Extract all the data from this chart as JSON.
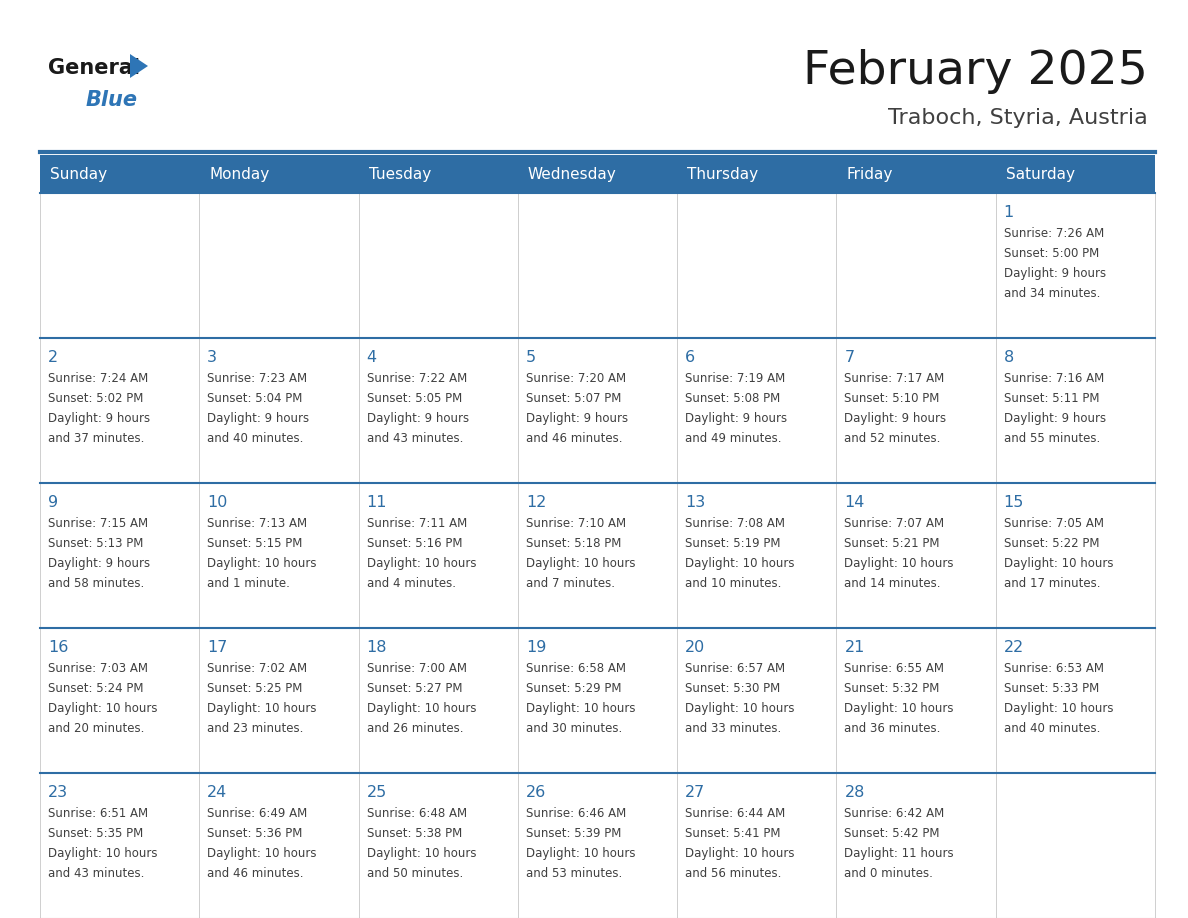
{
  "title": "February 2025",
  "subtitle": "Traboch, Styria, Austria",
  "header_bg": "#2E6DA4",
  "header_text_color": "#FFFFFF",
  "cell_bg": "#FFFFFF",
  "day_number_color": "#2E6DA4",
  "text_color": "#404040",
  "border_color": "#CCCCCC",
  "row_sep_color": "#2E6DA4",
  "days_of_week": [
    "Sunday",
    "Monday",
    "Tuesday",
    "Wednesday",
    "Thursday",
    "Friday",
    "Saturday"
  ],
  "calendar_data": [
    [
      {
        "day": "",
        "info": ""
      },
      {
        "day": "",
        "info": ""
      },
      {
        "day": "",
        "info": ""
      },
      {
        "day": "",
        "info": ""
      },
      {
        "day": "",
        "info": ""
      },
      {
        "day": "",
        "info": ""
      },
      {
        "day": "1",
        "info": "Sunrise: 7:26 AM\nSunset: 5:00 PM\nDaylight: 9 hours\nand 34 minutes."
      }
    ],
    [
      {
        "day": "2",
        "info": "Sunrise: 7:24 AM\nSunset: 5:02 PM\nDaylight: 9 hours\nand 37 minutes."
      },
      {
        "day": "3",
        "info": "Sunrise: 7:23 AM\nSunset: 5:04 PM\nDaylight: 9 hours\nand 40 minutes."
      },
      {
        "day": "4",
        "info": "Sunrise: 7:22 AM\nSunset: 5:05 PM\nDaylight: 9 hours\nand 43 minutes."
      },
      {
        "day": "5",
        "info": "Sunrise: 7:20 AM\nSunset: 5:07 PM\nDaylight: 9 hours\nand 46 minutes."
      },
      {
        "day": "6",
        "info": "Sunrise: 7:19 AM\nSunset: 5:08 PM\nDaylight: 9 hours\nand 49 minutes."
      },
      {
        "day": "7",
        "info": "Sunrise: 7:17 AM\nSunset: 5:10 PM\nDaylight: 9 hours\nand 52 minutes."
      },
      {
        "day": "8",
        "info": "Sunrise: 7:16 AM\nSunset: 5:11 PM\nDaylight: 9 hours\nand 55 minutes."
      }
    ],
    [
      {
        "day": "9",
        "info": "Sunrise: 7:15 AM\nSunset: 5:13 PM\nDaylight: 9 hours\nand 58 minutes."
      },
      {
        "day": "10",
        "info": "Sunrise: 7:13 AM\nSunset: 5:15 PM\nDaylight: 10 hours\nand 1 minute."
      },
      {
        "day": "11",
        "info": "Sunrise: 7:11 AM\nSunset: 5:16 PM\nDaylight: 10 hours\nand 4 minutes."
      },
      {
        "day": "12",
        "info": "Sunrise: 7:10 AM\nSunset: 5:18 PM\nDaylight: 10 hours\nand 7 minutes."
      },
      {
        "day": "13",
        "info": "Sunrise: 7:08 AM\nSunset: 5:19 PM\nDaylight: 10 hours\nand 10 minutes."
      },
      {
        "day": "14",
        "info": "Sunrise: 7:07 AM\nSunset: 5:21 PM\nDaylight: 10 hours\nand 14 minutes."
      },
      {
        "day": "15",
        "info": "Sunrise: 7:05 AM\nSunset: 5:22 PM\nDaylight: 10 hours\nand 17 minutes."
      }
    ],
    [
      {
        "day": "16",
        "info": "Sunrise: 7:03 AM\nSunset: 5:24 PM\nDaylight: 10 hours\nand 20 minutes."
      },
      {
        "day": "17",
        "info": "Sunrise: 7:02 AM\nSunset: 5:25 PM\nDaylight: 10 hours\nand 23 minutes."
      },
      {
        "day": "18",
        "info": "Sunrise: 7:00 AM\nSunset: 5:27 PM\nDaylight: 10 hours\nand 26 minutes."
      },
      {
        "day": "19",
        "info": "Sunrise: 6:58 AM\nSunset: 5:29 PM\nDaylight: 10 hours\nand 30 minutes."
      },
      {
        "day": "20",
        "info": "Sunrise: 6:57 AM\nSunset: 5:30 PM\nDaylight: 10 hours\nand 33 minutes."
      },
      {
        "day": "21",
        "info": "Sunrise: 6:55 AM\nSunset: 5:32 PM\nDaylight: 10 hours\nand 36 minutes."
      },
      {
        "day": "22",
        "info": "Sunrise: 6:53 AM\nSunset: 5:33 PM\nDaylight: 10 hours\nand 40 minutes."
      }
    ],
    [
      {
        "day": "23",
        "info": "Sunrise: 6:51 AM\nSunset: 5:35 PM\nDaylight: 10 hours\nand 43 minutes."
      },
      {
        "day": "24",
        "info": "Sunrise: 6:49 AM\nSunset: 5:36 PM\nDaylight: 10 hours\nand 46 minutes."
      },
      {
        "day": "25",
        "info": "Sunrise: 6:48 AM\nSunset: 5:38 PM\nDaylight: 10 hours\nand 50 minutes."
      },
      {
        "day": "26",
        "info": "Sunrise: 6:46 AM\nSunset: 5:39 PM\nDaylight: 10 hours\nand 53 minutes."
      },
      {
        "day": "27",
        "info": "Sunrise: 6:44 AM\nSunset: 5:41 PM\nDaylight: 10 hours\nand 56 minutes."
      },
      {
        "day": "28",
        "info": "Sunrise: 6:42 AM\nSunset: 5:42 PM\nDaylight: 11 hours\nand 0 minutes."
      },
      {
        "day": "",
        "info": ""
      }
    ]
  ],
  "logo_general_color": "#1a1a1a",
  "logo_blue_color": "#2E75B6",
  "logo_triangle_color": "#2E75B6",
  "title_color": "#1a1a1a",
  "subtitle_color": "#404040"
}
